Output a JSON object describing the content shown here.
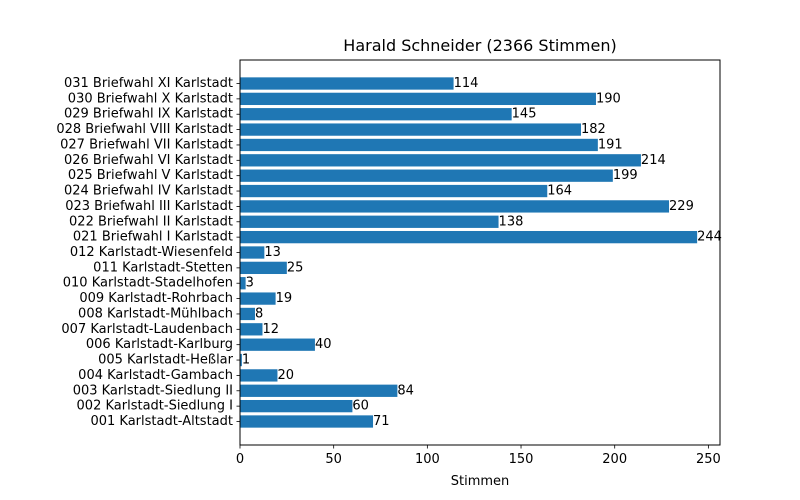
{
  "chart_data": {
    "type": "bar",
    "orientation": "horizontal",
    "title": "Harald Schneider (2366 Stimmen)",
    "xlabel": "Stimmen",
    "ylabel": "",
    "xlim": [
      0,
      256.2
    ],
    "xticks": [
      0,
      50,
      100,
      150,
      200,
      250
    ],
    "grid": false,
    "bar_color": "#1f77b4",
    "categories": [
      "001 Karlstadt-Altstadt",
      "002 Karlstadt-Siedlung I",
      "003 Karlstadt-Siedlung II",
      "004 Karlstadt-Gambach",
      "005 Karlstadt-Heßlar",
      "006 Karlstadt-Karlburg",
      "007 Karlstadt-Laudenbach",
      "008 Karlstadt-Mühlbach",
      "009 Karlstadt-Rohrbach",
      "010 Karlstadt-Stadelhofen",
      "011 Karlstadt-Stetten",
      "012 Karlstadt-Wiesenfeld",
      "021 Briefwahl I Karlstadt",
      "022 Briefwahl II Karlstadt",
      "023 Briefwahl III Karlstadt",
      "024 Briefwahl IV Karlstadt",
      "025 Briefwahl V Karlstadt",
      "026 Briefwahl VI Karlstadt",
      "027 Briefwahl VII Karlstadt",
      "028 Briefwahl VIII Karlstadt",
      "029 Briefwahl IX Karlstadt",
      "030 Briefwahl X Karlstadt",
      "031 Briefwahl XI Karlstadt"
    ],
    "values": [
      71,
      60,
      84,
      20,
      1,
      40,
      12,
      8,
      19,
      3,
      25,
      13,
      244,
      138,
      229,
      164,
      199,
      214,
      191,
      182,
      145,
      190,
      114
    ]
  }
}
